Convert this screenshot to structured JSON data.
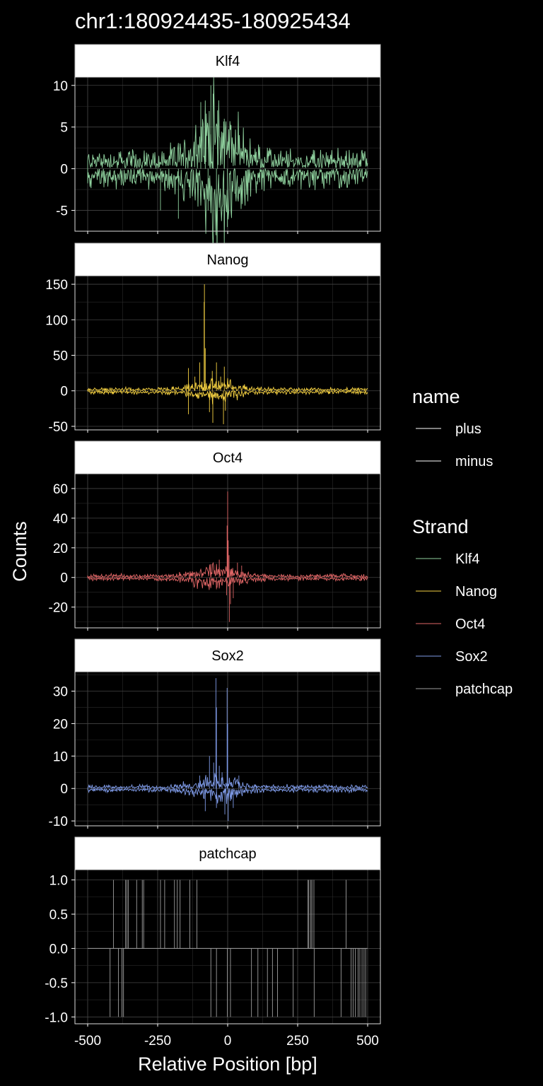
{
  "chart_data": {
    "type": "line",
    "title": "chr1:180924435-180925434",
    "xlabel": "Relative Position [bp]",
    "ylabel": "Counts",
    "x_range": [
      -500,
      500
    ],
    "x_ticks": [
      -500,
      -250,
      0,
      250,
      500
    ],
    "grid": true,
    "facets": [
      {
        "name": "Klf4",
        "color": "#8fd19e",
        "ylim": [
          -7.5,
          11
        ],
        "y_ticks": [
          10,
          5,
          0,
          -5
        ],
        "y_tick_labels": [
          "10",
          "5",
          "0",
          "-5"
        ],
        "peaks": [
          {
            "x": -96,
            "y": 8
          },
          {
            "x": -60,
            "y": 10
          },
          {
            "x": -52,
            "y": 9
          },
          {
            "x": -36,
            "y": 7
          },
          {
            "x": -12,
            "y": 6
          },
          {
            "x": -80,
            "y": 7
          },
          {
            "x": -40,
            "y": -5
          },
          {
            "x": -1,
            "y": -7
          },
          {
            "x": -176,
            "y": -6
          },
          {
            "x": -70,
            "y": -5
          },
          {
            "x": -240,
            "y": -5
          },
          {
            "x": 26,
            "y": -3
          }
        ],
        "peak_abs_typical": 2
      },
      {
        "name": "Nanog",
        "color": "#f5d142",
        "ylim": [
          -55,
          162
        ],
        "y_ticks": [
          150,
          100,
          50,
          0,
          -50
        ],
        "y_tick_labels": [
          "150",
          "100",
          "50",
          "0",
          "-50"
        ],
        "peaks": [
          {
            "x": -83,
            "y": 150
          },
          {
            "x": -84,
            "y": 125
          },
          {
            "x": -80,
            "y": 60
          },
          {
            "x": -100,
            "y": 40
          },
          {
            "x": -140,
            "y": 32
          },
          {
            "x": -117,
            "y": 20
          },
          {
            "x": -55,
            "y": 28
          },
          {
            "x": -40,
            "y": 40
          },
          {
            "x": -12,
            "y": 34
          },
          {
            "x": -25,
            "y": 20
          },
          {
            "x": -53,
            "y": -45
          },
          {
            "x": -140,
            "y": -33
          },
          {
            "x": -15,
            "y": -47
          },
          {
            "x": -65,
            "y": -30
          },
          {
            "x": -8,
            "y": -28
          }
        ],
        "peak_abs_typical": 4
      },
      {
        "name": "Oct4",
        "color": "#e06666",
        "ylim": [
          -34,
          70
        ],
        "y_ticks": [
          60,
          40,
          20,
          0,
          -20
        ],
        "y_tick_labels": [
          "60",
          "40",
          "20",
          "0",
          "-20"
        ],
        "peaks": [
          {
            "x": 0,
            "y": 58
          },
          {
            "x": -2,
            "y": 35
          },
          {
            "x": 2,
            "y": 25
          },
          {
            "x": -30,
            "y": 12
          },
          {
            "x": 5,
            "y": 15
          },
          {
            "x": 35,
            "y": 10
          },
          {
            "x": -60,
            "y": 9
          },
          {
            "x": 50,
            "y": 8
          },
          {
            "x": 6,
            "y": -30
          },
          {
            "x": 10,
            "y": -18
          },
          {
            "x": -4,
            "y": -12
          },
          {
            "x": -40,
            "y": -8
          },
          {
            "x": 20,
            "y": -14
          }
        ],
        "peak_abs_typical": 2
      },
      {
        "name": "Sox2",
        "color": "#7f9be8",
        "ylim": [
          -11.5,
          36
        ],
        "y_ticks": [
          30,
          20,
          10,
          0,
          -10
        ],
        "y_tick_labels": [
          "30",
          "20",
          "10",
          "0",
          "-10"
        ],
        "peaks": [
          {
            "x": -42,
            "y": 34
          },
          {
            "x": -40,
            "y": 25
          },
          {
            "x": -2,
            "y": 31
          },
          {
            "x": 0,
            "y": 20
          },
          {
            "x": -65,
            "y": 10
          },
          {
            "x": -50,
            "y": 8
          },
          {
            "x": -30,
            "y": 7
          },
          {
            "x": -20,
            "y": 5
          },
          {
            "x": -100,
            "y": 4
          },
          {
            "x": 40,
            "y": 4
          },
          {
            "x": 2,
            "y": -10
          },
          {
            "x": -10,
            "y": -8
          },
          {
            "x": 20,
            "y": -6
          },
          {
            "x": -80,
            "y": -7
          },
          {
            "x": -40,
            "y": -6
          }
        ],
        "peak_abs_typical": 1
      },
      {
        "name": "patchcap",
        "color": "#9e9e9e",
        "ylim": [
          -1.1,
          1.15
        ],
        "y_ticks": [
          1.0,
          0.5,
          0.0,
          -0.5,
          -1.0
        ],
        "y_tick_labels": [
          "1.0",
          "0.5",
          "0.0",
          "-0.5",
          "-1.0"
        ],
        "plus_x": [
          -408,
          -365,
          -360,
          -355,
          -325,
          -305,
          -300,
          -240,
          -225,
          -190,
          -180,
          -170,
          -135,
          -110,
          287,
          290,
          297,
          301,
          308,
          423
        ],
        "minus_x": [
          -420,
          -390,
          -378,
          -372,
          -60,
          -40,
          -1,
          10,
          85,
          108,
          142,
          160,
          178,
          234,
          309,
          405,
          441,
          448,
          456,
          466,
          472,
          480,
          487,
          493
        ]
      }
    ],
    "legends": [
      {
        "title": "name",
        "entries": [
          {
            "label": "plus",
            "color": "#ffffff"
          },
          {
            "label": "minus",
            "color": "#ffffff"
          }
        ]
      },
      {
        "title": "Strand",
        "entries": [
          {
            "label": "Klf4",
            "color": "#8fd19e"
          },
          {
            "label": "Nanog",
            "color": "#f5d142"
          },
          {
            "label": "Oct4",
            "color": "#e06666"
          },
          {
            "label": "Sox2",
            "color": "#7f9be8"
          },
          {
            "label": "patchcap",
            "color": "#9e9e9e"
          }
        ]
      }
    ],
    "legend_position": "right"
  }
}
